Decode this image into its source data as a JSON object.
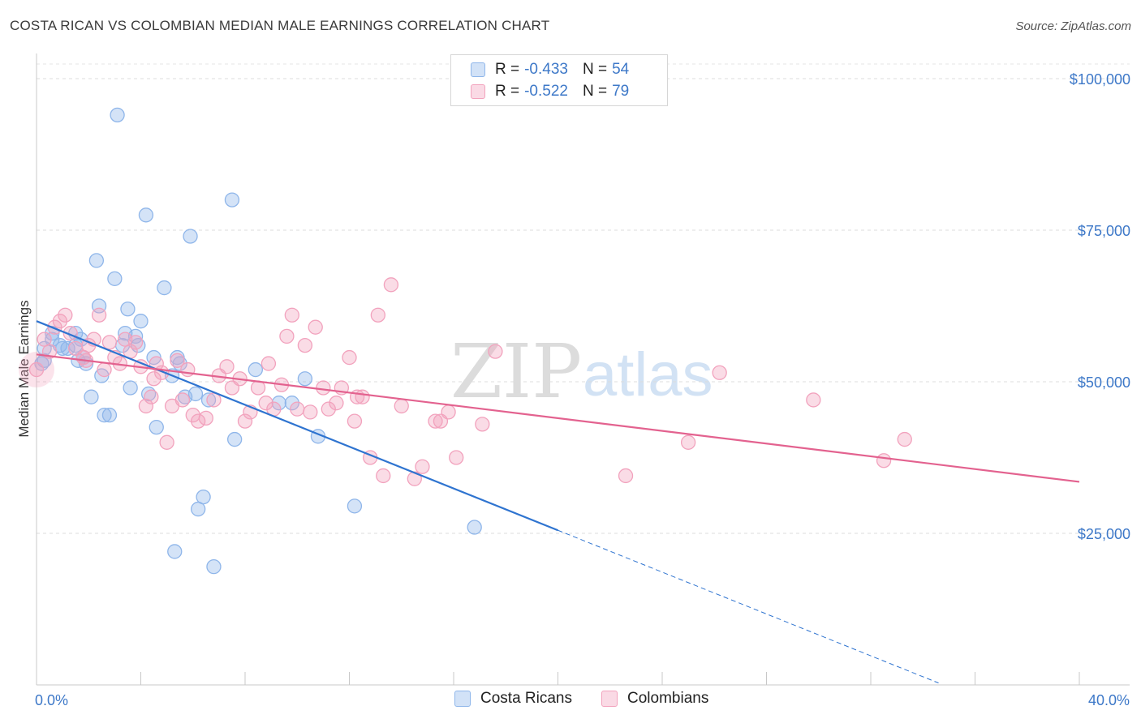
{
  "header": {
    "title": "COSTA RICAN VS COLOMBIAN MEDIAN MALE EARNINGS CORRELATION CHART",
    "source": "Source: ZipAtlas.com"
  },
  "legend": {
    "rows": [
      {
        "r_label": "R =",
        "r_value": "-0.433",
        "n_label": "N =",
        "n_value": "54",
        "color": "#8fb6ea"
      },
      {
        "r_label": "R =",
        "r_value": "-0.522",
        "n_label": "N =",
        "n_value": "79",
        "color": "#f2a2bd"
      }
    ]
  },
  "bottom_legend": {
    "items": [
      {
        "label": "Costa Ricans",
        "color": "#8fb6ea"
      },
      {
        "label": "Colombians",
        "color": "#f2a2bd"
      }
    ]
  },
  "watermark": {
    "zip": "ZIP",
    "atlas": "atlas"
  },
  "chart_data": {
    "type": "scatter",
    "ylabel": "Median Male Earnings",
    "xlim": [
      0,
      40
    ],
    "ylim": [
      0,
      105000
    ],
    "yticks": [
      {
        "value": 25000,
        "label": "$25,000"
      },
      {
        "value": 50000,
        "label": "$50,000"
      },
      {
        "value": 75000,
        "label": "$75,000"
      },
      {
        "value": 100000,
        "label": "$100,000"
      }
    ],
    "xtick_labels": [
      {
        "value": 0,
        "label": "0.0%"
      },
      {
        "value": 40,
        "label": "40.0%"
      }
    ],
    "grid": true,
    "legend_position": "top-center",
    "series": [
      {
        "name": "Costa Ricans",
        "color": "#8fb6ea",
        "line_color": "#2f74d0",
        "trend": {
          "x0": 0,
          "y0": 60000,
          "x1": 20,
          "y1": 25500,
          "dashed_to_x": 40,
          "dashed_to_y": -9000
        },
        "points": [
          [
            0.3,
            55500
          ],
          [
            0.3,
            53500
          ],
          [
            0.6,
            58000
          ],
          [
            0.6,
            57000
          ],
          [
            0.9,
            56000
          ],
          [
            1.0,
            55500
          ],
          [
            1.5,
            56000
          ],
          [
            1.5,
            58000
          ],
          [
            1.6,
            53500
          ],
          [
            1.7,
            57000
          ],
          [
            1.8,
            54000
          ],
          [
            1.9,
            53000
          ],
          [
            2.1,
            47500
          ],
          [
            2.3,
            70000
          ],
          [
            2.4,
            62500
          ],
          [
            2.5,
            51000
          ],
          [
            2.6,
            44500
          ],
          [
            2.8,
            44500
          ],
          [
            3.0,
            67000
          ],
          [
            3.1,
            94000
          ],
          [
            3.4,
            58000
          ],
          [
            3.5,
            62000
          ],
          [
            3.6,
            49000
          ],
          [
            3.8,
            57500
          ],
          [
            3.9,
            56000
          ],
          [
            4.0,
            60000
          ],
          [
            4.2,
            77500
          ],
          [
            4.3,
            48000
          ],
          [
            4.5,
            54000
          ],
          [
            4.6,
            42500
          ],
          [
            4.9,
            65500
          ],
          [
            5.2,
            51000
          ],
          [
            5.3,
            22000
          ],
          [
            5.4,
            54000
          ],
          [
            5.7,
            47500
          ],
          [
            5.9,
            74000
          ],
          [
            6.1,
            48000
          ],
          [
            6.2,
            29000
          ],
          [
            6.4,
            31000
          ],
          [
            6.6,
            47000
          ],
          [
            6.8,
            19500
          ],
          [
            7.5,
            80000
          ],
          [
            7.6,
            40500
          ],
          [
            8.4,
            52000
          ],
          [
            9.3,
            46500
          ],
          [
            9.8,
            46500
          ],
          [
            10.3,
            50500
          ],
          [
            10.8,
            41000
          ],
          [
            12.2,
            29500
          ],
          [
            16.8,
            26000
          ],
          [
            0.2,
            53000
          ],
          [
            1.2,
            55500
          ],
          [
            3.3,
            56000
          ],
          [
            5.5,
            53000
          ]
        ]
      },
      {
        "name": "Colombians",
        "color": "#f2a2bd",
        "line_color": "#e3628f",
        "trend": {
          "x0": 0,
          "y0": 54500,
          "x1": 40,
          "y1": 33500
        },
        "points": [
          [
            0.0,
            52000
          ],
          [
            0.3,
            57000
          ],
          [
            0.5,
            55000
          ],
          [
            0.7,
            59000
          ],
          [
            0.9,
            60000
          ],
          [
            1.1,
            61000
          ],
          [
            1.3,
            58000
          ],
          [
            1.5,
            55500
          ],
          [
            1.8,
            54000
          ],
          [
            2.0,
            56000
          ],
          [
            2.2,
            57000
          ],
          [
            2.4,
            61000
          ],
          [
            2.6,
            52000
          ],
          [
            2.8,
            56500
          ],
          [
            3.0,
            54000
          ],
          [
            3.2,
            53000
          ],
          [
            3.4,
            57000
          ],
          [
            3.6,
            55000
          ],
          [
            3.8,
            56500
          ],
          [
            4.0,
            52500
          ],
          [
            4.2,
            46000
          ],
          [
            4.4,
            47500
          ],
          [
            4.6,
            53000
          ],
          [
            4.8,
            51500
          ],
          [
            5.0,
            40000
          ],
          [
            5.2,
            46000
          ],
          [
            5.4,
            53500
          ],
          [
            5.6,
            47000
          ],
          [
            5.8,
            52000
          ],
          [
            6.0,
            44500
          ],
          [
            6.2,
            43500
          ],
          [
            6.5,
            44000
          ],
          [
            6.8,
            47000
          ],
          [
            7.0,
            51000
          ],
          [
            7.3,
            52500
          ],
          [
            7.5,
            49000
          ],
          [
            7.8,
            50500
          ],
          [
            8.0,
            43500
          ],
          [
            8.2,
            45000
          ],
          [
            8.5,
            49000
          ],
          [
            8.8,
            46500
          ],
          [
            9.1,
            45500
          ],
          [
            9.4,
            49500
          ],
          [
            9.6,
            57500
          ],
          [
            9.8,
            61000
          ],
          [
            10.0,
            45500
          ],
          [
            10.3,
            56000
          ],
          [
            10.5,
            45000
          ],
          [
            10.7,
            59000
          ],
          [
            11.0,
            49000
          ],
          [
            11.2,
            45500
          ],
          [
            11.5,
            46500
          ],
          [
            11.7,
            49000
          ],
          [
            12.0,
            54000
          ],
          [
            12.2,
            43500
          ],
          [
            12.5,
            47500
          ],
          [
            12.8,
            37500
          ],
          [
            13.1,
            61000
          ],
          [
            13.3,
            34500
          ],
          [
            13.6,
            66000
          ],
          [
            14.0,
            46000
          ],
          [
            14.5,
            34000
          ],
          [
            14.8,
            36000
          ],
          [
            15.3,
            43500
          ],
          [
            15.5,
            43500
          ],
          [
            15.8,
            45000
          ],
          [
            16.1,
            37500
          ],
          [
            17.1,
            43000
          ],
          [
            17.6,
            55000
          ],
          [
            22.6,
            34500
          ],
          [
            25.0,
            40000
          ],
          [
            26.2,
            51500
          ],
          [
            29.8,
            47000
          ],
          [
            32.5,
            37000
          ],
          [
            33.3,
            40500
          ],
          [
            1.9,
            53500
          ],
          [
            4.5,
            50500
          ],
          [
            8.9,
            53000
          ],
          [
            12.3,
            47500
          ]
        ]
      }
    ]
  }
}
